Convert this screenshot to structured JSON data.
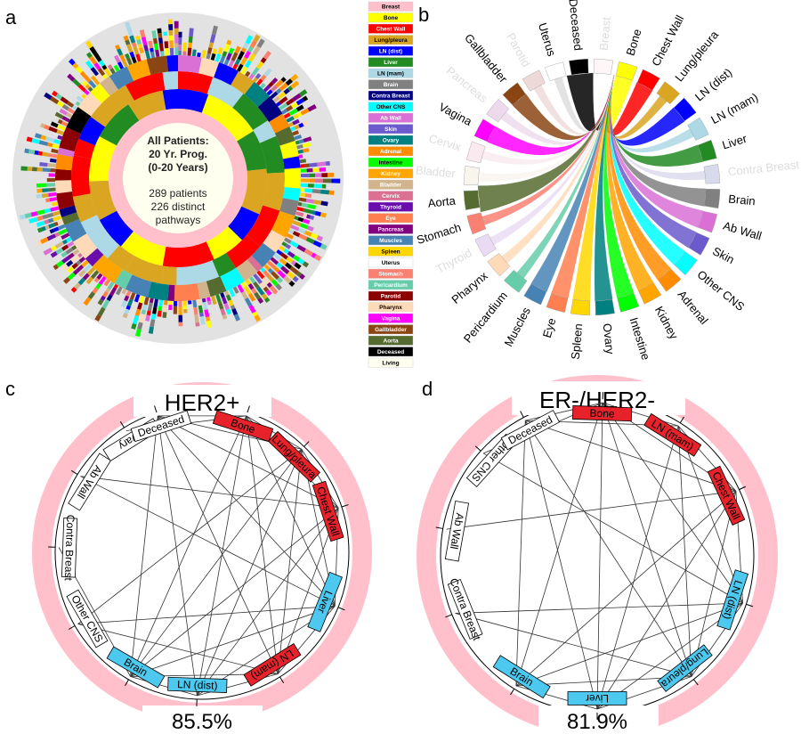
{
  "panels": {
    "a": {
      "letter": "a",
      "center": {
        "line1": "All Patients:",
        "line2": "20 Yr. Prog.",
        "line3": "(0-20 Years)",
        "line4": "289 patients",
        "line5": "226 distinct",
        "line6": "pathways"
      },
      "inner_ring_colors": [
        "#FFFF00",
        "#FFFF00",
        "#228B22",
        "#DAA520",
        "#0000FF",
        "#FFFF00",
        "#FF0000",
        "#FFFF00",
        "#0000FF",
        "#DAA520",
        "#FFFF00",
        "#228B22",
        "#DAA520",
        "#0000FF"
      ],
      "ring_palette": [
        "#FFFF00",
        "#FF0000",
        "#DAA520",
        "#0000FF",
        "#228B22",
        "#ADD8E6",
        "#808080",
        "#000080",
        "#00FFFF",
        "#DA70D6",
        "#6A5ACD",
        "#008080",
        "#FF8C00",
        "#00FF00",
        "#FFA500",
        "#D2B48C",
        "#DB7093",
        "#6A0DAD",
        "#FF7F50",
        "#800080",
        "#4682B4",
        "#FFD700",
        "#FA8072",
        "#66CDAA",
        "#8B0000",
        "#FFDAB9",
        "#FF00FF",
        "#8B4513",
        "#556B2F",
        "#000000"
      ],
      "legend": [
        {
          "label": "Breast",
          "bg": "#FFC0CB",
          "fg": "#000000"
        },
        {
          "label": "Bone",
          "bg": "#FFFF00",
          "fg": "#000000"
        },
        {
          "label": "Chest Wall",
          "bg": "#FF0000",
          "fg": "#ffffff"
        },
        {
          "label": "Lung/pleura",
          "bg": "#DAA520",
          "fg": "#000000"
        },
        {
          "label": "LN (dist)",
          "bg": "#0000FF",
          "fg": "#ffffff"
        },
        {
          "label": "Liver",
          "bg": "#228B22",
          "fg": "#ffffff"
        },
        {
          "label": "LN (mam)",
          "bg": "#ADD8E6",
          "fg": "#000000"
        },
        {
          "label": "Brain",
          "bg": "#808080",
          "fg": "#ffffff"
        },
        {
          "label": "Contra Breast",
          "bg": "#000080",
          "fg": "#ffffff"
        },
        {
          "label": "Other CNS",
          "bg": "#00FFFF",
          "fg": "#000000"
        },
        {
          "label": "Ab Wall",
          "bg": "#DA70D6",
          "fg": "#ffffff"
        },
        {
          "label": "Skin",
          "bg": "#6A5ACD",
          "fg": "#ffffff"
        },
        {
          "label": "Ovary",
          "bg": "#008080",
          "fg": "#ffffff"
        },
        {
          "label": "Adrenal",
          "bg": "#FF8C00",
          "fg": "#ffffff"
        },
        {
          "label": "Intestine",
          "bg": "#00FF00",
          "fg": "#000000"
        },
        {
          "label": "Kidney",
          "bg": "#FFA500",
          "fg": "#ffffff"
        },
        {
          "label": "Bladder",
          "bg": "#D2B48C",
          "fg": "#ffffff"
        },
        {
          "label": "Cervix",
          "bg": "#DB7093",
          "fg": "#ffffff"
        },
        {
          "label": "Thyroid",
          "bg": "#6A0DAD",
          "fg": "#ffffff"
        },
        {
          "label": "Eye",
          "bg": "#FF7F50",
          "fg": "#ffffff"
        },
        {
          "label": "Pancreas",
          "bg": "#800080",
          "fg": "#ffffff"
        },
        {
          "label": "Muscles",
          "bg": "#4682B4",
          "fg": "#ffffff"
        },
        {
          "label": "Spleen",
          "bg": "#FFD700",
          "fg": "#000000"
        },
        {
          "label": "Uterus",
          "bg": "#FFFFFF",
          "fg": "#000000"
        },
        {
          "label": "Stomach",
          "bg": "#FA8072",
          "fg": "#ffffff"
        },
        {
          "label": "Pericardium",
          "bg": "#66CDAA",
          "fg": "#ffffff"
        },
        {
          "label": "Parotid",
          "bg": "#8B0000",
          "fg": "#ffffff"
        },
        {
          "label": "Pharynx",
          "bg": "#FFDAB9",
          "fg": "#000000"
        },
        {
          "label": "Vagina",
          "bg": "#FF00FF",
          "fg": "#ffffff"
        },
        {
          "label": "Gallbladder",
          "bg": "#8B4513",
          "fg": "#ffffff"
        },
        {
          "label": "Aorta",
          "bg": "#556B2F",
          "fg": "#ffffff"
        },
        {
          "label": "Deceased",
          "bg": "#000000",
          "fg": "#ffffff"
        },
        {
          "label": "Living",
          "bg": "#FFFFF0",
          "fg": "#000000"
        }
      ]
    },
    "b": {
      "letter": "b",
      "source_label": "Breast",
      "nodes": [
        {
          "label": "Deceased",
          "color": "#000000",
          "faint": false,
          "weight": 3
        },
        {
          "label": "Breast",
          "color": "#FFC0CB",
          "faint": true,
          "weight": 0
        },
        {
          "label": "Bone",
          "color": "#FFFF00",
          "faint": false,
          "weight": 2
        },
        {
          "label": "Chest Wall",
          "color": "#FF0000",
          "faint": false,
          "weight": 2
        },
        {
          "label": "Lung/pleura",
          "color": "#DAA520",
          "faint": false,
          "weight": 1
        },
        {
          "label": "LN (dist)",
          "color": "#0000FF",
          "faint": false,
          "weight": 2
        },
        {
          "label": "LN (mam)",
          "color": "#ADD8E6",
          "faint": false,
          "weight": 1
        },
        {
          "label": "Liver",
          "color": "#228B22",
          "faint": false,
          "weight": 2
        },
        {
          "label": "Contra Breast",
          "color": "#000080",
          "faint": true,
          "weight": 1
        },
        {
          "label": "Brain",
          "color": "#808080",
          "faint": false,
          "weight": 2
        },
        {
          "label": "Ab Wall",
          "color": "#DA70D6",
          "faint": false,
          "weight": 2
        },
        {
          "label": "Skin",
          "color": "#6A5ACD",
          "faint": false,
          "weight": 2
        },
        {
          "label": "Other CNS",
          "color": "#00FFFF",
          "faint": false,
          "weight": 2
        },
        {
          "label": "Adrenal",
          "color": "#FF8C00",
          "faint": false,
          "weight": 2
        },
        {
          "label": "Kidney",
          "color": "#FFA500",
          "faint": false,
          "weight": 2
        },
        {
          "label": "Intestine",
          "color": "#00FF00",
          "faint": false,
          "weight": 2
        },
        {
          "label": "Ovary",
          "color": "#008080",
          "faint": false,
          "weight": 2
        },
        {
          "label": "Spleen",
          "color": "#FFD700",
          "faint": false,
          "weight": 2
        },
        {
          "label": "Eye",
          "color": "#FF7F50",
          "faint": false,
          "weight": 2
        },
        {
          "label": "Muscles",
          "color": "#4682B4",
          "faint": false,
          "weight": 2
        },
        {
          "label": "Pericardium",
          "color": "#66CDAA",
          "faint": false,
          "weight": 1
        },
        {
          "label": "Pharynx",
          "color": "#FFDAB9",
          "faint": false,
          "weight": 1
        },
        {
          "label": "Thyroid",
          "color": "#6A0DAD",
          "faint": true,
          "weight": 1
        },
        {
          "label": "Stomach",
          "color": "#FA8072",
          "faint": false,
          "weight": 1
        },
        {
          "label": "Aorta",
          "color": "#556B2F",
          "faint": false,
          "weight": 3
        },
        {
          "label": "Bladder",
          "color": "#D2B48C",
          "faint": true,
          "weight": 1
        },
        {
          "label": "Cervix",
          "color": "#DB7093",
          "faint": true,
          "weight": 1
        },
        {
          "label": "Vagina",
          "color": "#FF00FF",
          "faint": false,
          "weight": 2
        },
        {
          "label": "Pancreas",
          "color": "#800080",
          "faint": true,
          "weight": 1
        },
        {
          "label": "Gallbladder",
          "color": "#8B4513",
          "faint": false,
          "weight": 2
        },
        {
          "label": "Parotid",
          "color": "#8B0000",
          "faint": true,
          "weight": 1
        },
        {
          "label": "Uterus",
          "color": "#FFFFFF",
          "faint": false,
          "weight": 1
        }
      ]
    },
    "c": {
      "letter": "c",
      "title": "HER2+",
      "percent": "85.5%",
      "nodes": [
        {
          "label": "Bone",
          "fill": "#E8222A"
        },
        {
          "label": "Lung/pleura",
          "fill": "#E8222A"
        },
        {
          "label": "Chest Wall",
          "fill": "#E8222A"
        },
        {
          "label": "Liver",
          "fill": "#4DC9F0"
        },
        {
          "label": "LN (mam)",
          "fill": "#E8222A"
        },
        {
          "label": "LN (dist)",
          "fill": "#4DC9F0"
        },
        {
          "label": "Brain",
          "fill": "#4DC9F0"
        },
        {
          "label": "Other CNS",
          "fill": "#FFFFFF"
        },
        {
          "label": "Contra Breast",
          "fill": "#FFFFFF"
        },
        {
          "label": "Ab Wall",
          "fill": "#FFFFFF"
        },
        {
          "label": "Ovary",
          "fill": "#FFFFFF"
        },
        {
          "label": "Deceased",
          "fill": "#FFFFFF"
        }
      ],
      "edges": [
        [
          0,
          1
        ],
        [
          0,
          2
        ],
        [
          0,
          3
        ],
        [
          0,
          4
        ],
        [
          0,
          5
        ],
        [
          0,
          6
        ],
        [
          0,
          11
        ],
        [
          0,
          10
        ],
        [
          1,
          2
        ],
        [
          1,
          3
        ],
        [
          1,
          4
        ],
        [
          1,
          5
        ],
        [
          1,
          6
        ],
        [
          1,
          11
        ],
        [
          2,
          3
        ],
        [
          2,
          4
        ],
        [
          2,
          5
        ],
        [
          2,
          6
        ],
        [
          2,
          11
        ],
        [
          3,
          4
        ],
        [
          3,
          5
        ],
        [
          3,
          6
        ],
        [
          3,
          11
        ],
        [
          3,
          9
        ],
        [
          4,
          5
        ],
        [
          4,
          6
        ],
        [
          4,
          7
        ],
        [
          4,
          11
        ],
        [
          5,
          6
        ],
        [
          5,
          11
        ],
        [
          6,
          11
        ],
        [
          6,
          8
        ],
        [
          2,
          9
        ],
        [
          1,
          7
        ],
        [
          3,
          7
        ]
      ]
    },
    "d": {
      "letter": "d",
      "title": "ER-/HER2-",
      "percent": "81.9%",
      "nodes": [
        {
          "label": "Bone",
          "fill": "#E8222A"
        },
        {
          "label": "LN (mam)",
          "fill": "#E8222A"
        },
        {
          "label": "Chest Wall",
          "fill": "#E8222A"
        },
        {
          "label": "LN (dist)",
          "fill": "#4DC9F0"
        },
        {
          "label": "Lung/pleura",
          "fill": "#4DC9F0"
        },
        {
          "label": "Liver",
          "fill": "#4DC9F0"
        },
        {
          "label": "Brain",
          "fill": "#4DC9F0"
        },
        {
          "label": "Contra Breast",
          "fill": "#FFFFFF"
        },
        {
          "label": "Ab Wall",
          "fill": "#FFFFFF"
        },
        {
          "label": "Other CNS",
          "fill": "#FFFFFF"
        },
        {
          "label": "Deceased",
          "fill": "#FFFFFF"
        }
      ],
      "edges": [
        [
          0,
          1
        ],
        [
          0,
          2
        ],
        [
          0,
          3
        ],
        [
          0,
          4
        ],
        [
          0,
          5
        ],
        [
          0,
          6
        ],
        [
          0,
          10
        ],
        [
          0,
          9
        ],
        [
          1,
          2
        ],
        [
          1,
          3
        ],
        [
          1,
          4
        ],
        [
          1,
          5
        ],
        [
          1,
          10
        ],
        [
          2,
          3
        ],
        [
          2,
          4
        ],
        [
          2,
          5
        ],
        [
          2,
          6
        ],
        [
          2,
          8
        ],
        [
          2,
          10
        ],
        [
          3,
          4
        ],
        [
          3,
          5
        ],
        [
          3,
          6
        ],
        [
          3,
          7
        ],
        [
          4,
          5
        ],
        [
          4,
          6
        ],
        [
          4,
          10
        ],
        [
          5,
          6
        ],
        [
          5,
          10
        ],
        [
          6,
          10
        ],
        [
          3,
          9
        ],
        [
          4,
          7
        ]
      ]
    }
  }
}
